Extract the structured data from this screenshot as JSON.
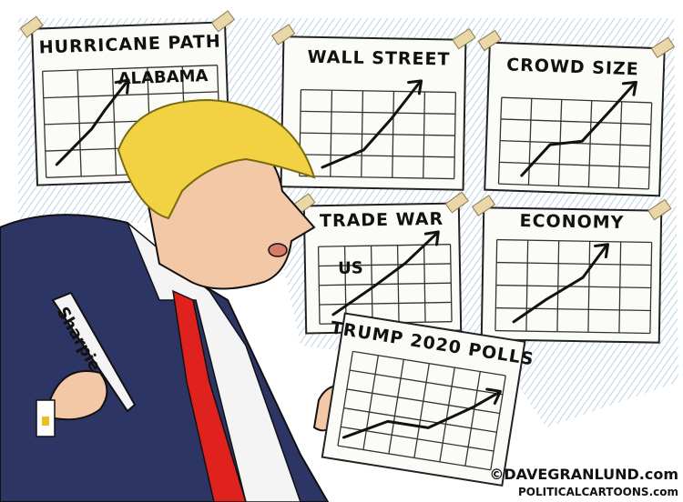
{
  "panels": [
    {
      "title": "HURRICANE PATH",
      "label": "ALABAMA"
    },
    {
      "title": "WALL STREET"
    },
    {
      "title": "CROWD SIZE"
    },
    {
      "title": "TRADE WAR",
      "label": "US"
    },
    {
      "title": "ECONOMY"
    }
  ],
  "polls_sign": {
    "title": "TRUMP 2020 POLLS"
  },
  "marker": {
    "label": "Sharpie"
  },
  "credits": {
    "line1": "©DAVEGRANLUND.com",
    "line2": "POLITICALCARTOONS.com"
  }
}
